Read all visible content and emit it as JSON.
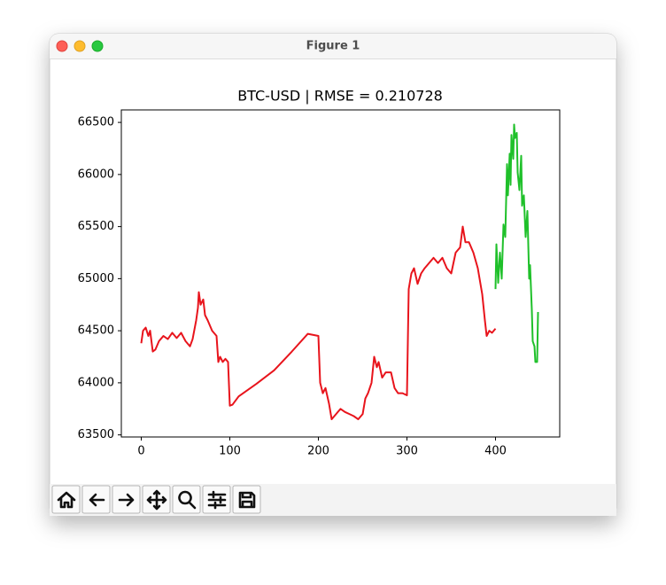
{
  "window_title": "Figure 1",
  "chart_data": {
    "type": "line",
    "title": "BTC-USD | RMSE = 0.210728",
    "xlim": [
      -22.5,
      472.5
    ],
    "xticks": [
      0,
      100,
      200,
      300,
      400
    ],
    "ylim": [
      63480,
      66620
    ],
    "yticks": [
      63500,
      64000,
      64500,
      65000,
      65500,
      66000,
      66500
    ],
    "series": [
      {
        "color": "#e8141c",
        "x": [
          0,
          2,
          5,
          8,
          10,
          13,
          16,
          20,
          25,
          30,
          35,
          40,
          45,
          50,
          55,
          58,
          62,
          64,
          65,
          67,
          70,
          72,
          75,
          80,
          85,
          87,
          89,
          92,
          95,
          98,
          100,
          103,
          110,
          130,
          150,
          170,
          188,
          200,
          202,
          205,
          208,
          212,
          215,
          220,
          225,
          230,
          235,
          240,
          245,
          250,
          253,
          256,
          260,
          263,
          266,
          268,
          272,
          276,
          282,
          286,
          290,
          295,
          300,
          302,
          305,
          308,
          312,
          316,
          320,
          325,
          330,
          335,
          340,
          345,
          350,
          355,
          360,
          363,
          366,
          370,
          375,
          380,
          385,
          388,
          390,
          393,
          396,
          400
        ],
        "values": [
          64380,
          64500,
          64530,
          64450,
          64500,
          64300,
          64320,
          64400,
          64450,
          64420,
          64480,
          64430,
          64480,
          64400,
          64350,
          64420,
          64600,
          64720,
          64870,
          64750,
          64800,
          64650,
          64600,
          64500,
          64450,
          64200,
          64250,
          64200,
          64230,
          64200,
          63780,
          63790,
          63870,
          63990,
          64120,
          64300,
          64470,
          64450,
          64000,
          63900,
          63950,
          63800,
          63650,
          63700,
          63750,
          63720,
          63700,
          63680,
          63650,
          63700,
          63850,
          63900,
          64000,
          64250,
          64150,
          64200,
          64050,
          64100,
          64100,
          63950,
          63900,
          63900,
          63880,
          64900,
          65050,
          65100,
          64950,
          65050,
          65100,
          65150,
          65200,
          65150,
          65200,
          65100,
          65050,
          65250,
          65300,
          65500,
          65350,
          65350,
          65250,
          65100,
          64850,
          64600,
          64450,
          64500,
          64480,
          64520
        ]
      },
      {
        "color": "#1fc02a",
        "x": [
          400,
          401,
          403,
          405,
          407,
          409,
          411,
          413,
          414,
          416,
          417,
          418,
          420,
          421,
          422,
          424,
          425,
          427,
          429,
          430,
          432,
          434,
          436,
          438,
          439,
          441,
          442,
          444,
          445,
          447,
          448
        ],
        "values": [
          64900,
          65330,
          64960,
          65250,
          65000,
          65520,
          65400,
          66100,
          65800,
          66200,
          65900,
          66380,
          66150,
          66480,
          66350,
          66400,
          66020,
          65850,
          66180,
          65700,
          65800,
          65400,
          65650,
          65000,
          65130,
          64700,
          64400,
          64350,
          64200,
          64200,
          64680
        ]
      }
    ]
  }
}
